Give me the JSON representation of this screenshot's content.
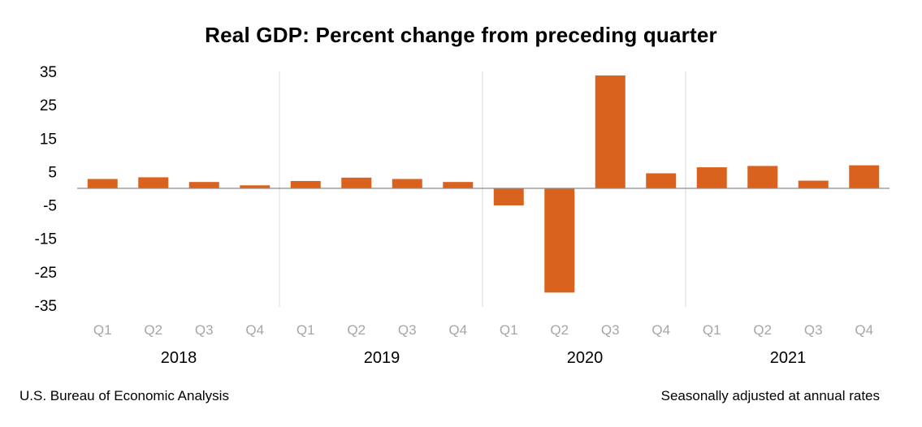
{
  "title": "Real GDP:  Percent change from preceding quarter",
  "source": "U.S. Bureau of Economic Analysis",
  "note": "Seasonally adjusted at annual rates",
  "chart_data": {
    "type": "bar",
    "title": "Real GDP:  Percent change from preceding quarter",
    "xlabel": "",
    "ylabel": "",
    "ylim": [
      -35,
      35
    ],
    "yticks": [
      35,
      25,
      15,
      5,
      -5,
      -15,
      -25,
      -35
    ],
    "categories": [
      "Q1",
      "Q2",
      "Q3",
      "Q4",
      "Q1",
      "Q2",
      "Q3",
      "Q4",
      "Q1",
      "Q2",
      "Q3",
      "Q4",
      "Q1",
      "Q2",
      "Q3",
      "Q4"
    ],
    "groups": [
      "2018",
      "2019",
      "2020",
      "2021"
    ],
    "values": [
      2.8,
      3.3,
      1.9,
      0.9,
      2.2,
      3.2,
      2.8,
      1.9,
      -5.1,
      -31.2,
      33.8,
      4.5,
      6.3,
      6.7,
      2.3,
      6.9
    ],
    "bar_color": "#d9621f",
    "grid": false
  }
}
